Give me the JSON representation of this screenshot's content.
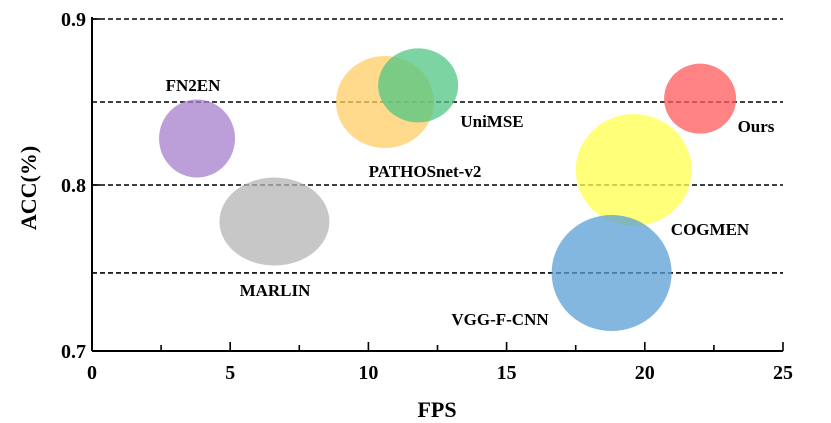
{
  "chart_data": {
    "type": "scatter",
    "title": "",
    "xlabel": "FPS",
    "ylabel": "ACC(%)",
    "xlim": [
      0,
      25
    ],
    "ylim": [
      0.7,
      0.9
    ],
    "xticks": [
      0,
      5,
      10,
      15,
      20,
      25
    ],
    "xtick_labels": [
      "0",
      "5",
      "10",
      "15",
      "20",
      "25"
    ],
    "yticks": [
      0.7,
      0.8,
      0.9
    ],
    "ytick_labels": [
      "0.7",
      "0.8",
      "0.9"
    ],
    "reference_lines": [
      0.9,
      0.85,
      0.8,
      0.747
    ],
    "points": [
      {
        "name": "FN2EN",
        "label": "FN2EN",
        "x": 3.8,
        "y": 0.828,
        "color": "#a67fcc"
      },
      {
        "name": "MARLIN",
        "label": "MARLIN",
        "x": 6.6,
        "y": 0.778,
        "color": "#b4b4b4"
      },
      {
        "name": "PATHOSnet-v2",
        "label": "PATHOSnet-v2",
        "x": 10.6,
        "y": 0.85,
        "color": "#ffce66"
      },
      {
        "name": "UniMSE",
        "label": "UniMSE",
        "x": 11.8,
        "y": 0.86,
        "color": "#4fc683"
      },
      {
        "name": "Ours",
        "label": "Ours",
        "x": 22.0,
        "y": 0.852,
        "color": "#ff5959"
      },
      {
        "name": "COGMEN",
        "label": "COGMEN",
        "x": 19.6,
        "y": 0.809,
        "color": "#ffff4d"
      },
      {
        "name": "VGG-F-CNN",
        "label": "VGG-F-CNN",
        "x": 18.8,
        "y": 0.747,
        "color": "#5b9fd4"
      }
    ]
  }
}
